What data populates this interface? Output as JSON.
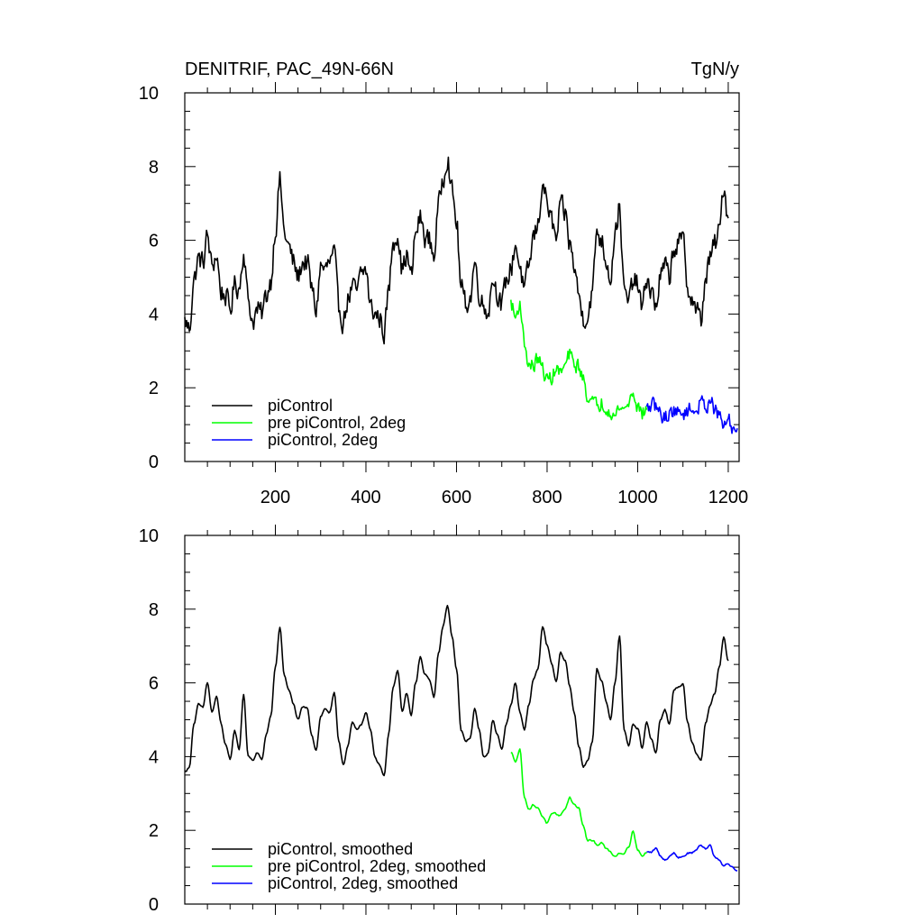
{
  "chart_data": [
    {
      "type": "line",
      "title": "DENITRIF, PAC_49N-66N",
      "units": "TgN/y",
      "xlim": [
        0,
        1224
      ],
      "ylim": [
        0,
        10
      ],
      "y_ticks": [
        0,
        2,
        4,
        6,
        8,
        10
      ],
      "x_ticks": [
        200,
        400,
        600,
        800,
        1000,
        1200
      ],
      "x_tick_labels_shown": true,
      "legend_position": "bottom-left",
      "legend": [
        "piControl",
        "pre piControl, 2deg",
        "piControl, 2deg"
      ],
      "series": [
        {
          "name": "piControl",
          "color": "#000000",
          "noisy": true,
          "x": [
            0,
            10,
            20,
            30,
            40,
            50,
            60,
            70,
            80,
            90,
            100,
            110,
            120,
            130,
            140,
            150,
            160,
            170,
            180,
            190,
            200,
            210,
            220,
            230,
            240,
            250,
            260,
            270,
            280,
            290,
            300,
            310,
            320,
            330,
            340,
            350,
            360,
            370,
            380,
            390,
            400,
            410,
            420,
            430,
            440,
            450,
            460,
            470,
            480,
            490,
            500,
            510,
            520,
            530,
            540,
            550,
            560,
            570,
            580,
            590,
            600,
            610,
            620,
            630,
            640,
            650,
            660,
            670,
            680,
            690,
            700,
            710,
            720,
            730,
            740,
            750,
            760,
            770,
            780,
            790,
            800,
            810,
            820,
            830,
            840,
            850,
            860,
            870,
            880,
            890,
            900,
            910,
            920,
            930,
            940,
            950,
            960,
            970,
            980,
            990,
            1000,
            1010,
            1020,
            1030,
            1040,
            1050,
            1060,
            1070,
            1080,
            1090,
            1100,
            1110,
            1120,
            1130,
            1140,
            1150,
            1160,
            1170,
            1180,
            1190,
            1200
          ],
          "values": [
            3.8,
            3.6,
            4.9,
            5.5,
            5.4,
            6.1,
            5.3,
            5.6,
            4.6,
            4.5,
            4.1,
            4.8,
            4.7,
            5.7,
            4.4,
            3.8,
            4.1,
            4.0,
            4.5,
            4.9,
            6.3,
            7.6,
            6.2,
            5.8,
            5.4,
            5.0,
            5.4,
            5.4,
            4.7,
            4.1,
            5.3,
            5.2,
            5.4,
            5.6,
            4.2,
            3.8,
            4.4,
            4.7,
            4.6,
            5.1,
            5.2,
            4.2,
            4.0,
            3.9,
            3.5,
            4.6,
            6.0,
            6.2,
            5.2,
            5.6,
            5.0,
            6.2,
            6.6,
            6.1,
            6.0,
            5.6,
            6.9,
            7.7,
            8.3,
            7.3,
            6.5,
            4.7,
            4.3,
            4.4,
            5.4,
            4.6,
            4.2,
            4.1,
            5.0,
            4.6,
            4.2,
            4.9,
            5.2,
            5.9,
            5.3,
            4.6,
            5.3,
            6.1,
            6.4,
            7.6,
            7.0,
            6.5,
            6.0,
            6.9,
            6.7,
            5.9,
            5.3,
            4.5,
            3.9,
            4.0,
            4.6,
            6.3,
            6.0,
            5.5,
            5.0,
            6.2,
            6.9,
            4.6,
            4.3,
            4.9,
            4.8,
            4.1,
            5.0,
            4.6,
            4.2,
            5.0,
            5.3,
            5.0,
            5.8,
            5.9,
            6.0,
            4.8,
            4.4,
            4.1,
            3.8,
            5.0,
            5.5,
            5.9,
            6.2,
            7.5,
            6.6
          ]
        },
        {
          "name": "pre piControl, 2deg",
          "color": "#00ff00",
          "noisy": true,
          "x": [
            720,
            730,
            740,
            750,
            760,
            770,
            780,
            790,
            800,
            810,
            820,
            830,
            840,
            850,
            860,
            870,
            880,
            890,
            900,
            910,
            920,
            930,
            940,
            950,
            960,
            970,
            980,
            990,
            1000,
            1010,
            1020
          ],
          "values": [
            4.3,
            3.9,
            4.3,
            3.2,
            2.6,
            2.6,
            2.8,
            2.5,
            2.2,
            2.3,
            2.5,
            2.4,
            2.6,
            2.9,
            2.6,
            2.6,
            2.2,
            1.8,
            1.6,
            1.5,
            1.6,
            1.5,
            1.4,
            1.2,
            1.5,
            1.4,
            1.6,
            1.9,
            1.5,
            1.3,
            1.4
          ]
        },
        {
          "name": "piControl, 2deg",
          "color": "#0000ff",
          "noisy": true,
          "x": [
            1020,
            1030,
            1040,
            1050,
            1060,
            1070,
            1080,
            1090,
            1100,
            1110,
            1120,
            1130,
            1140,
            1150,
            1160,
            1170,
            1180,
            1190,
            1200,
            1210,
            1220
          ],
          "values": [
            1.4,
            1.5,
            1.5,
            1.3,
            1.2,
            1.3,
            1.4,
            1.3,
            1.3,
            1.4,
            1.4,
            1.4,
            1.6,
            1.5,
            1.7,
            1.4,
            1.2,
            1.0,
            1.1,
            0.9,
            0.9
          ]
        }
      ]
    },
    {
      "type": "line",
      "ylim": [
        0,
        10
      ],
      "xlim": [
        0,
        1224
      ],
      "y_ticks": [
        0,
        2,
        4,
        6,
        8,
        10
      ],
      "x_ticks": [
        200,
        400,
        600,
        800,
        1000,
        1200
      ],
      "x_tick_labels_shown": false,
      "legend_position": "bottom-left",
      "legend": [
        "piControl, smoothed",
        "pre piControl, 2deg, smoothed",
        "piControl, 2deg, smoothed"
      ],
      "series": [
        {
          "name": "piControl, smoothed",
          "color": "#000000",
          "noisy": false,
          "x": [
            0,
            10,
            20,
            30,
            40,
            50,
            60,
            70,
            80,
            90,
            100,
            110,
            120,
            130,
            140,
            150,
            160,
            170,
            180,
            190,
            200,
            210,
            220,
            230,
            240,
            250,
            260,
            270,
            280,
            290,
            300,
            310,
            320,
            330,
            340,
            350,
            360,
            370,
            380,
            390,
            400,
            410,
            420,
            430,
            440,
            450,
            460,
            470,
            480,
            490,
            500,
            510,
            520,
            530,
            540,
            550,
            560,
            570,
            580,
            590,
            600,
            610,
            620,
            630,
            640,
            650,
            660,
            670,
            680,
            690,
            700,
            710,
            720,
            730,
            740,
            750,
            760,
            770,
            780,
            790,
            800,
            810,
            820,
            830,
            840,
            850,
            860,
            870,
            880,
            890,
            900,
            910,
            920,
            930,
            940,
            950,
            960,
            970,
            980,
            990,
            1000,
            1010,
            1020,
            1030,
            1040,
            1050,
            1060,
            1070,
            1080,
            1090,
            1100,
            1110,
            1120,
            1130,
            1140,
            1150,
            1160,
            1170,
            1180,
            1190,
            1200
          ],
          "values": [
            3.6,
            3.7,
            4.9,
            5.4,
            5.3,
            6.0,
            5.2,
            5.6,
            4.9,
            4.3,
            3.9,
            4.7,
            4.2,
            5.7,
            4.0,
            3.9,
            4.1,
            3.9,
            4.6,
            5.1,
            6.4,
            7.5,
            6.2,
            5.8,
            5.4,
            5.0,
            5.3,
            5.3,
            4.6,
            4.2,
            5.1,
            5.3,
            5.2,
            5.7,
            4.4,
            3.8,
            4.3,
            4.9,
            4.7,
            4.9,
            5.2,
            4.7,
            4.0,
            3.8,
            3.5,
            4.6,
            5.9,
            6.3,
            5.2,
            5.7,
            5.1,
            6.0,
            6.7,
            6.2,
            6.1,
            5.6,
            6.8,
            7.5,
            8.1,
            7.3,
            6.4,
            4.7,
            4.4,
            4.5,
            5.3,
            4.7,
            4.0,
            4.1,
            5.0,
            4.6,
            4.2,
            4.9,
            5.4,
            6.0,
            5.2,
            4.7,
            5.4,
            6.1,
            6.4,
            7.5,
            7.0,
            6.5,
            6.0,
            6.8,
            6.6,
            5.9,
            5.2,
            4.3,
            3.7,
            3.9,
            4.4,
            6.4,
            6.1,
            5.5,
            5.0,
            6.0,
            7.3,
            4.7,
            4.3,
            4.9,
            4.8,
            4.2,
            4.9,
            4.5,
            4.1,
            5.0,
            5.3,
            4.9,
            5.8,
            5.9,
            6.0,
            4.9,
            4.4,
            4.1,
            3.9,
            4.9,
            5.4,
            5.7,
            6.4,
            7.2,
            6.6
          ]
        },
        {
          "name": "pre piControl, 2deg, smoothed",
          "color": "#00ff00",
          "noisy": false,
          "x": [
            720,
            730,
            740,
            750,
            760,
            770,
            780,
            790,
            800,
            810,
            820,
            830,
            840,
            850,
            860,
            870,
            880,
            890,
            900,
            910,
            920,
            930,
            940,
            950,
            960,
            970,
            980,
            990,
            1000,
            1010,
            1020
          ],
          "values": [
            4.1,
            3.9,
            4.2,
            2.9,
            2.6,
            2.7,
            2.6,
            2.4,
            2.2,
            2.4,
            2.4,
            2.4,
            2.6,
            2.9,
            2.7,
            2.6,
            2.1,
            1.7,
            1.7,
            1.6,
            1.7,
            1.5,
            1.4,
            1.3,
            1.4,
            1.4,
            1.6,
            2.0,
            1.5,
            1.3,
            1.4
          ]
        },
        {
          "name": "piControl, 2deg, smoothed",
          "color": "#0000ff",
          "noisy": false,
          "x": [
            1020,
            1030,
            1040,
            1050,
            1060,
            1070,
            1080,
            1090,
            1100,
            1110,
            1120,
            1130,
            1140,
            1150,
            1160,
            1170,
            1180,
            1190,
            1200,
            1210,
            1220
          ],
          "values": [
            1.4,
            1.4,
            1.5,
            1.3,
            1.2,
            1.3,
            1.4,
            1.3,
            1.3,
            1.4,
            1.4,
            1.5,
            1.6,
            1.5,
            1.6,
            1.3,
            1.2,
            1.0,
            1.1,
            1.0,
            0.9
          ]
        }
      ]
    }
  ]
}
